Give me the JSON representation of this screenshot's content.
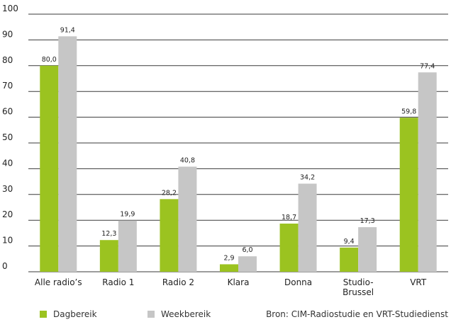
{
  "chart_data": {
    "type": "bar",
    "categories": [
      "Alle radio’s",
      "Radio 1",
      "Radio 2",
      "Klara",
      "Donna",
      "Studio-\nBrussel",
      "VRT"
    ],
    "series": [
      {
        "name": "Dagbereik",
        "color": "#9bc320",
        "values": [
          80.0,
          12.3,
          28.2,
          2.9,
          18.7,
          9.4,
          59.8
        ],
        "labels": [
          "80,0",
          "12,3",
          "28,2",
          "2,9",
          "18,7",
          "9,4",
          "59,8"
        ]
      },
      {
        "name": "Weekbereik",
        "color": "#c6c6c6",
        "values": [
          91.4,
          19.9,
          40.8,
          6.0,
          34.2,
          17.3,
          77.4
        ],
        "labels": [
          "91,4",
          "19,9",
          "40,8",
          "6,0",
          "34,2",
          "17,3",
          "77,4"
        ]
      }
    ],
    "ylim": [
      0,
      100
    ],
    "yticks": [
      0,
      10,
      20,
      30,
      40,
      50,
      60,
      70,
      80,
      90,
      100
    ],
    "grid": true,
    "legend_position": "bottom-left",
    "source": "Bron: CIM-Radiostudie en VRT-Studiedienst"
  }
}
